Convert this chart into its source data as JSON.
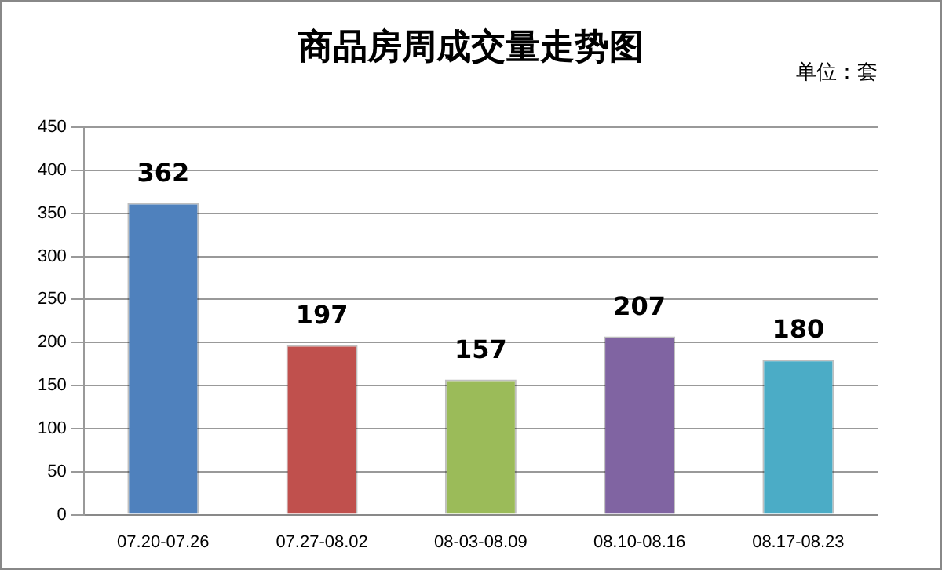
{
  "chart_data": {
    "type": "bar",
    "title": "商品房周成交量走势图",
    "annotations": [
      "单位：套"
    ],
    "categories": [
      "07.20-07.26",
      "07.27-08.02",
      "08-03-08.09",
      "08.10-08.16",
      "08.17-08.23"
    ],
    "values": [
      362,
      197,
      157,
      207,
      180
    ],
    "colors": [
      "#4f81bd",
      "#c0504d",
      "#9bbb59",
      "#8064a2",
      "#4bacc6"
    ],
    "ylim": [
      0,
      450
    ],
    "yticks": [
      0,
      50,
      100,
      150,
      200,
      250,
      300,
      350,
      400,
      450
    ],
    "grid": "y",
    "data_labels": true,
    "legend": false
  }
}
